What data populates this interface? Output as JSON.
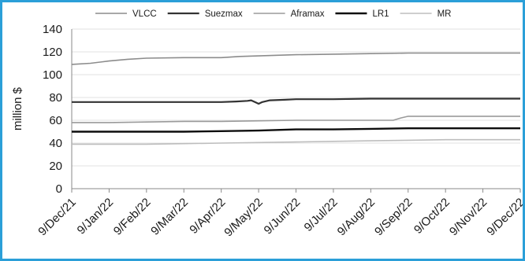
{
  "chart_data": {
    "type": "line",
    "title": "",
    "xlabel": "",
    "ylabel": "million $",
    "ylim": [
      0,
      140
    ],
    "yticks": [
      0,
      20,
      40,
      60,
      80,
      100,
      120,
      140
    ],
    "categories": [
      "9/Dec/21",
      "9/Jan/22",
      "9/Feb/22",
      "9/Mar/22",
      "9/Apr/22",
      "9/May/22",
      "9/Jun/22",
      "9/Jul/22",
      "9/Aug/22",
      "9/Sep/22",
      "9/Oct/22",
      "9/Nov/22",
      "9/Dec/22"
    ],
    "grid": true,
    "legend_position": "top",
    "series": [
      {
        "name": "VLCC",
        "color": "#8c8c8c",
        "width": 1.6,
        "x": [
          0,
          0.5,
          1,
          1.5,
          2,
          3,
          4,
          4.5,
          5,
          5.5,
          6,
          7,
          8,
          9,
          9.5,
          10,
          11,
          12
        ],
        "values": [
          109,
          110,
          112,
          113.5,
          114.5,
          115,
          115,
          116,
          116.5,
          117,
          117.5,
          118,
          118.5,
          119,
          119,
          119,
          119,
          119
        ]
      },
      {
        "name": "Suezmax",
        "color": "#333333",
        "width": 2.2,
        "x": [
          0,
          1,
          2,
          3,
          4,
          4.4,
          4.7,
          4.8,
          4.9,
          5.0,
          5.1,
          5.3,
          5.7,
          6,
          7,
          8,
          9,
          10,
          11,
          12
        ],
        "values": [
          76,
          76,
          76,
          76,
          76,
          76.5,
          77,
          77.5,
          76,
          74.5,
          76,
          77.5,
          78,
          78.5,
          78.5,
          79,
          79,
          79,
          79,
          79
        ]
      },
      {
        "name": "Aframax",
        "color": "#9a9a9a",
        "width": 1.6,
        "x": [
          0,
          1,
          2,
          3,
          4,
          5,
          6,
          7,
          8,
          8.6,
          8.8,
          9,
          10,
          11,
          12
        ],
        "values": [
          58,
          58,
          58.5,
          59,
          59,
          59.5,
          60,
          60,
          60,
          60,
          62,
          63.5,
          63.5,
          63.5,
          63.5
        ]
      },
      {
        "name": "LR1",
        "color": "#0d0d0d",
        "width": 2.4,
        "x": [
          0,
          1,
          2,
          3,
          4,
          5,
          5.5,
          6,
          7,
          8,
          9,
          10,
          11,
          12
        ],
        "values": [
          50,
          50,
          50,
          50,
          50.5,
          51,
          51.5,
          52,
          52,
          52.5,
          53,
          53,
          53,
          53
        ]
      },
      {
        "name": "MR",
        "color": "#bdbdbd",
        "width": 1.6,
        "x": [
          0,
          1,
          2,
          3,
          4,
          5,
          6,
          7,
          8,
          9,
          10,
          11,
          12
        ],
        "values": [
          39,
          39,
          39,
          39.5,
          40,
          40.5,
          41,
          41.5,
          42,
          42.5,
          43,
          43,
          43
        ]
      }
    ]
  }
}
